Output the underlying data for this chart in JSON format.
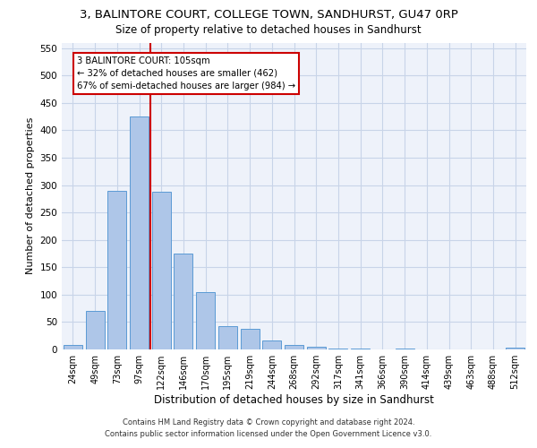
{
  "title_line1": "3, BALINTORE COURT, COLLEGE TOWN, SANDHURST, GU47 0RP",
  "title_line2": "Size of property relative to detached houses in Sandhurst",
  "xlabel": "Distribution of detached houses by size in Sandhurst",
  "ylabel": "Number of detached properties",
  "footer_line1": "Contains HM Land Registry data © Crown copyright and database right 2024.",
  "footer_line2": "Contains public sector information licensed under the Open Government Licence v3.0.",
  "categories": [
    "24sqm",
    "49sqm",
    "73sqm",
    "97sqm",
    "122sqm",
    "146sqm",
    "170sqm",
    "195sqm",
    "219sqm",
    "244sqm",
    "268sqm",
    "292sqm",
    "317sqm",
    "341sqm",
    "366sqm",
    "390sqm",
    "414sqm",
    "439sqm",
    "463sqm",
    "488sqm",
    "512sqm"
  ],
  "values": [
    8,
    71,
    290,
    425,
    288,
    175,
    105,
    43,
    38,
    17,
    8,
    5,
    2,
    1,
    0,
    2,
    0,
    0,
    0,
    0,
    3
  ],
  "bar_color": "#aec6e8",
  "bar_edge_color": "#5b9bd5",
  "grid_color": "#c8d4e8",
  "vline_x": 4.5,
  "vline_color": "#cc0000",
  "annotation_text": "3 BALINTORE COURT: 105sqm\n← 32% of detached houses are smaller (462)\n67% of semi-detached houses are larger (984) →",
  "annotation_box_color": "#ffffff",
  "annotation_box_edge_color": "#cc0000",
  "ylim": [
    0,
    560
  ],
  "yticks": [
    0,
    50,
    100,
    150,
    200,
    250,
    300,
    350,
    400,
    450,
    500,
    550
  ],
  "bg_color": "#eef2fa",
  "title_fontsize": 9.5,
  "subtitle_fontsize": 8.5,
  "ylabel_fontsize": 8,
  "xlabel_fontsize": 8.5
}
